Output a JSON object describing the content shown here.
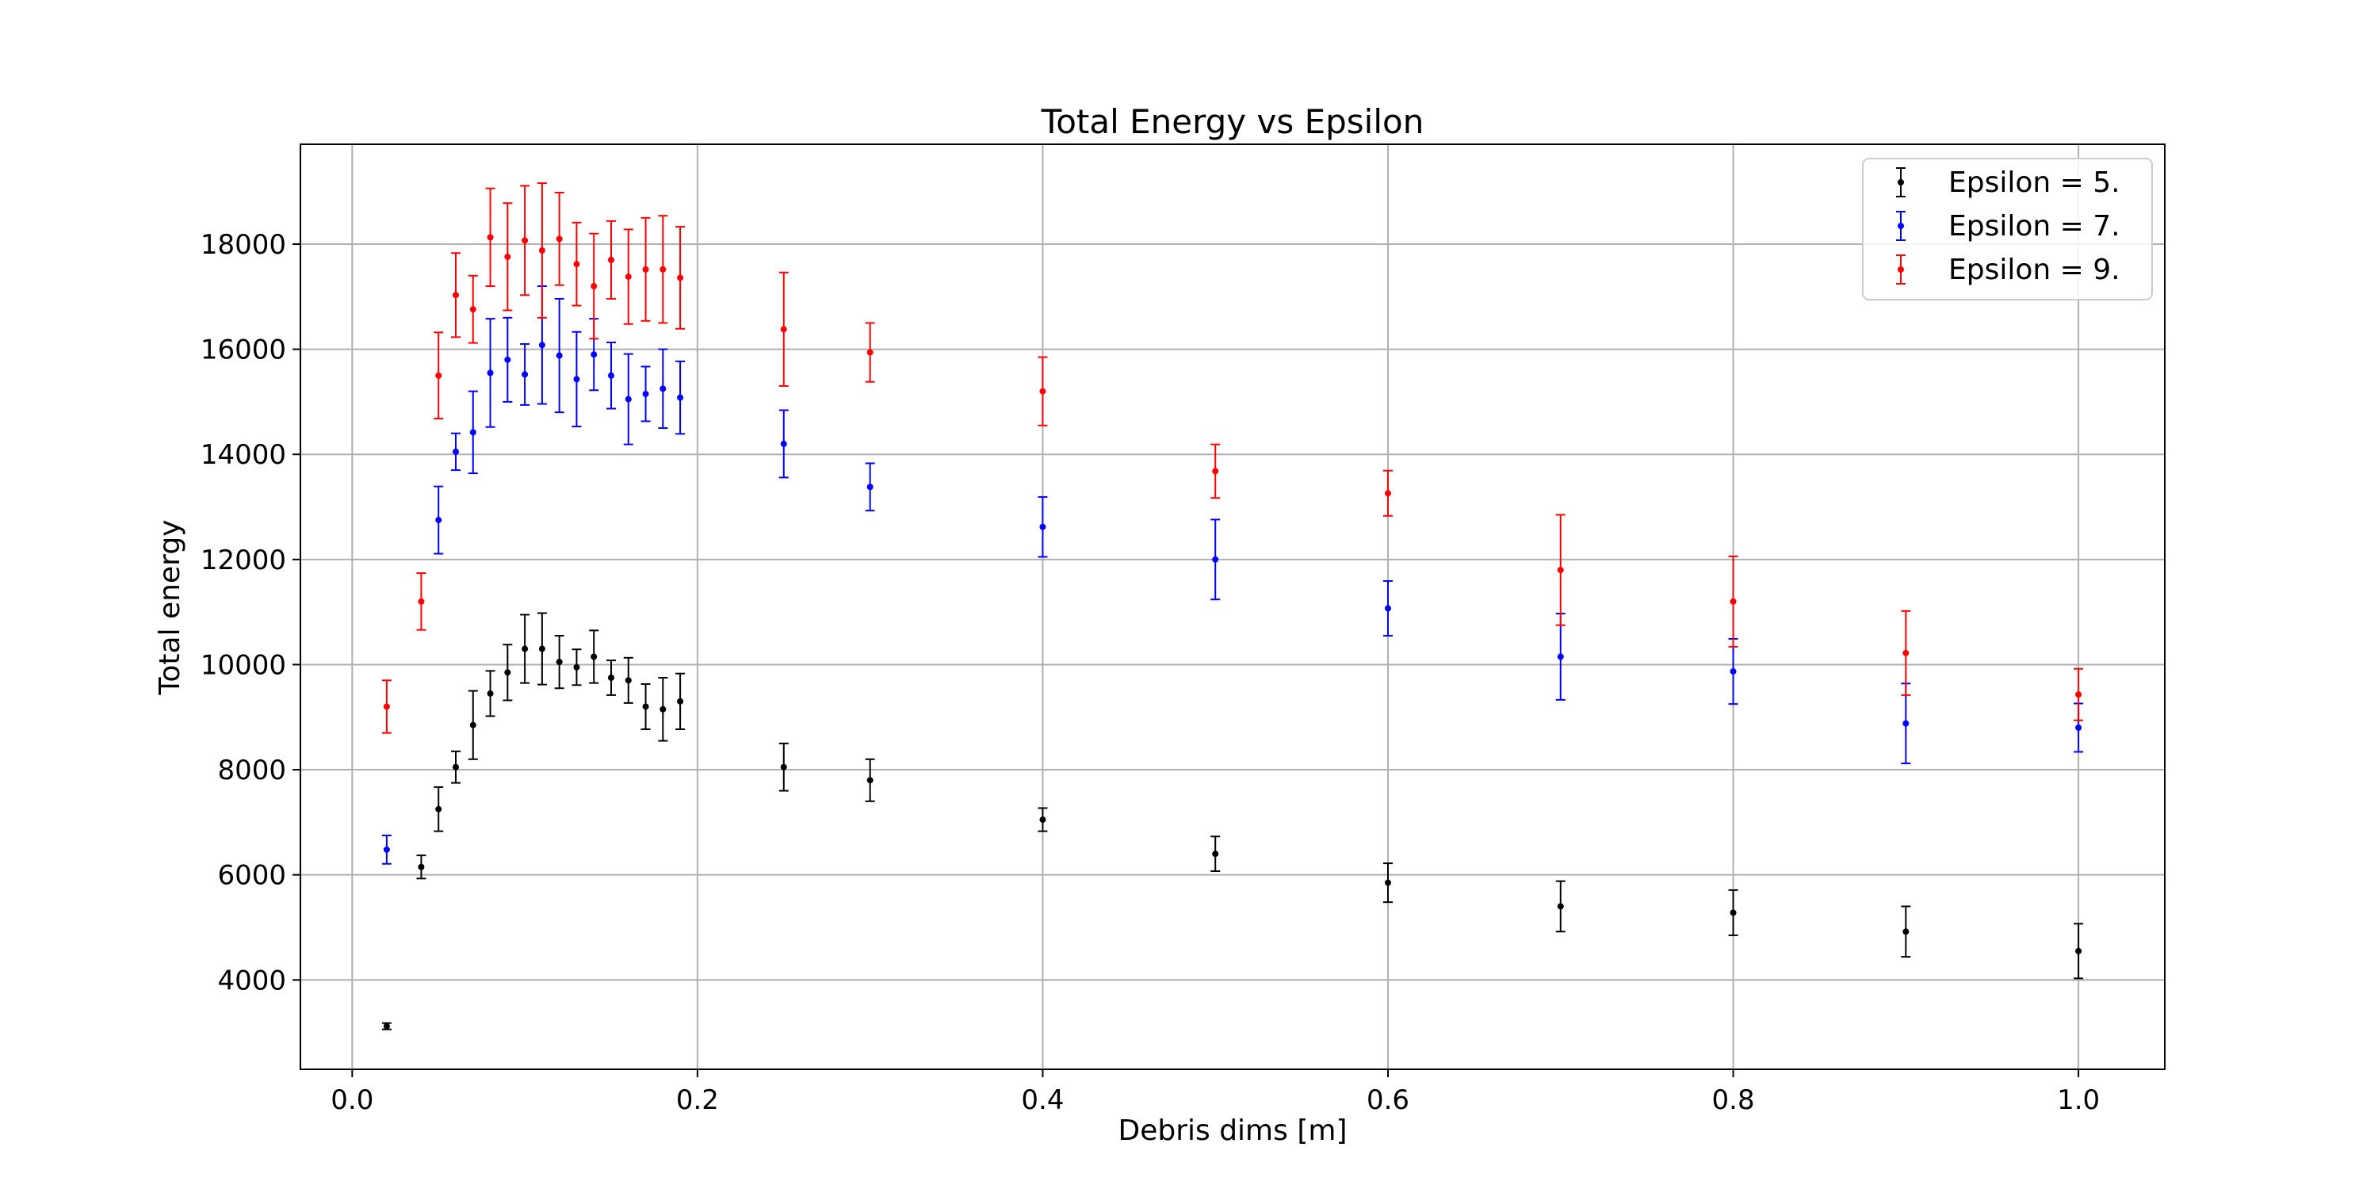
{
  "chart_data": {
    "type": "scatter",
    "title": "Total Energy vs Epsilon",
    "xlabel": "Debris dims [m]",
    "ylabel": "Total energy",
    "xlim": [
      -0.03,
      1.05
    ],
    "ylim": [
      2300,
      19900
    ],
    "xticks": [
      0.0,
      0.2,
      0.4,
      0.6,
      0.8,
      1.0
    ],
    "xtick_labels": [
      "0.0",
      "0.2",
      "0.4",
      "0.6",
      "0.8",
      "1.0"
    ],
    "yticks": [
      4000,
      6000,
      8000,
      10000,
      12000,
      14000,
      16000,
      18000
    ],
    "ytick_labels": [
      "4000",
      "6000",
      "8000",
      "10000",
      "12000",
      "14000",
      "16000",
      "18000"
    ],
    "grid": true,
    "legend_position": "top-right",
    "error_bars": true,
    "x": [
      0.02,
      0.04,
      0.05,
      0.06,
      0.07,
      0.08,
      0.09,
      0.1,
      0.11,
      0.12,
      0.13,
      0.14,
      0.15,
      0.16,
      0.17,
      0.18,
      0.19,
      0.25,
      0.3,
      0.4,
      0.5,
      0.6,
      0.7,
      0.8,
      0.9,
      1.0
    ],
    "series": [
      {
        "name": "Epsilon = 5.",
        "color": "#000000",
        "values": [
          3120,
          6150,
          7250,
          8050,
          8850,
          9450,
          9850,
          10300,
          10300,
          10050,
          9950,
          10150,
          9750,
          9700,
          9200,
          9150,
          9300,
          8050,
          7800,
          7050,
          6400,
          5850,
          5400,
          5280,
          4920,
          4550
        ],
        "errors": [
          60,
          220,
          420,
          300,
          650,
          430,
          530,
          650,
          680,
          500,
          340,
          500,
          330,
          430,
          430,
          600,
          530,
          450,
          400,
          220,
          330,
          370,
          480,
          430,
          480,
          520
        ]
      },
      {
        "name": "Epsilon = 7.",
        "color": "#0000ff",
        "values": [
          6480,
          null,
          12750,
          14050,
          14420,
          15550,
          15800,
          15520,
          16080,
          15880,
          15430,
          15900,
          15500,
          15050,
          15150,
          15250,
          15080,
          14200,
          13380,
          12620,
          12000,
          11070,
          10150,
          9870,
          8880,
          8800
        ],
        "errors": [
          270,
          null,
          640,
          350,
          780,
          1030,
          800,
          580,
          1120,
          1080,
          900,
          680,
          630,
          860,
          520,
          750,
          690,
          640,
          450,
          570,
          760,
          520,
          820,
          620,
          760,
          460
        ]
      },
      {
        "name": "Epsilon = 9.",
        "color": "#ff0000",
        "values": [
          9200,
          11200,
          15500,
          17030,
          16760,
          18130,
          17760,
          18070,
          17880,
          18100,
          17620,
          17200,
          17700,
          17380,
          17520,
          17520,
          17360,
          16380,
          15940,
          15200,
          13680,
          13260,
          11800,
          11200,
          10220,
          9430
        ],
        "errors": [
          500,
          540,
          820,
          800,
          640,
          930,
          1020,
          1040,
          1280,
          880,
          790,
          1000,
          740,
          900,
          980,
          1020,
          970,
          1080,
          560,
          650,
          510,
          430,
          1050,
          860,
          800,
          490
        ]
      }
    ]
  }
}
